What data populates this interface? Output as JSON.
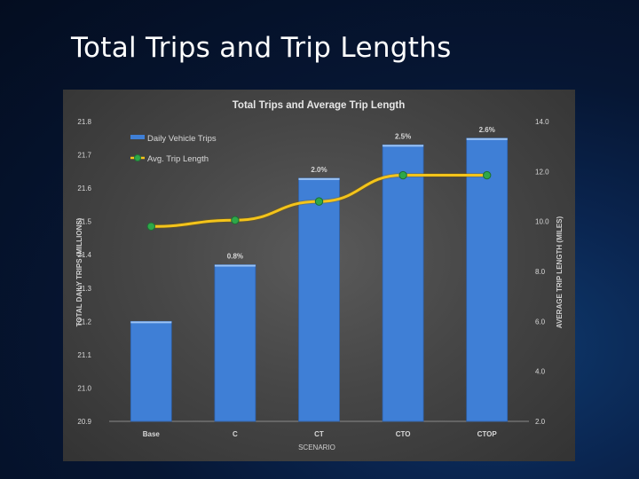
{
  "slide": {
    "title": "Total Trips and Trip Lengths"
  },
  "colors": {
    "bar": "#3f7fd6",
    "line": "#f4c41a",
    "marker": "#2ea84a",
    "text": "#d8d8d8"
  },
  "chart_data": {
    "type": "bar",
    "title": "Total Trips and Average Trip Length",
    "xlabel": "SCENARIO",
    "ylabel": "TOTAL DAILY TRIPS (MILLIONS)",
    "y2label": "AVERAGE TRIP LENGTH (MILES)",
    "categories": [
      "Base",
      "C",
      "CT",
      "CTO",
      "CTOP"
    ],
    "series": [
      {
        "name": "Daily Vehicle Trips",
        "type": "bar",
        "axis": "left",
        "values": [
          21.2,
          21.37,
          21.63,
          21.73,
          21.75
        ],
        "labels": [
          "",
          "0.8%",
          "2.0%",
          "2.5%",
          "2.6%"
        ]
      },
      {
        "name": "Avg. Trip Length",
        "type": "line",
        "axis": "right",
        "values": [
          9.8,
          10.05,
          10.8,
          11.85,
          11.85
        ]
      }
    ],
    "ylim": [
      20.9,
      21.8
    ],
    "y2lim": [
      2.0,
      14.0
    ],
    "yticks": [
      "20.9",
      "21.0",
      "21.1",
      "21.2",
      "21.3",
      "21.4",
      "21.5",
      "21.6",
      "21.7",
      "21.8"
    ],
    "y2ticks": [
      "2.0",
      "4.0",
      "6.0",
      "8.0",
      "10.0",
      "12.0",
      "14.0"
    ],
    "grid": false,
    "legend": "top-left"
  }
}
